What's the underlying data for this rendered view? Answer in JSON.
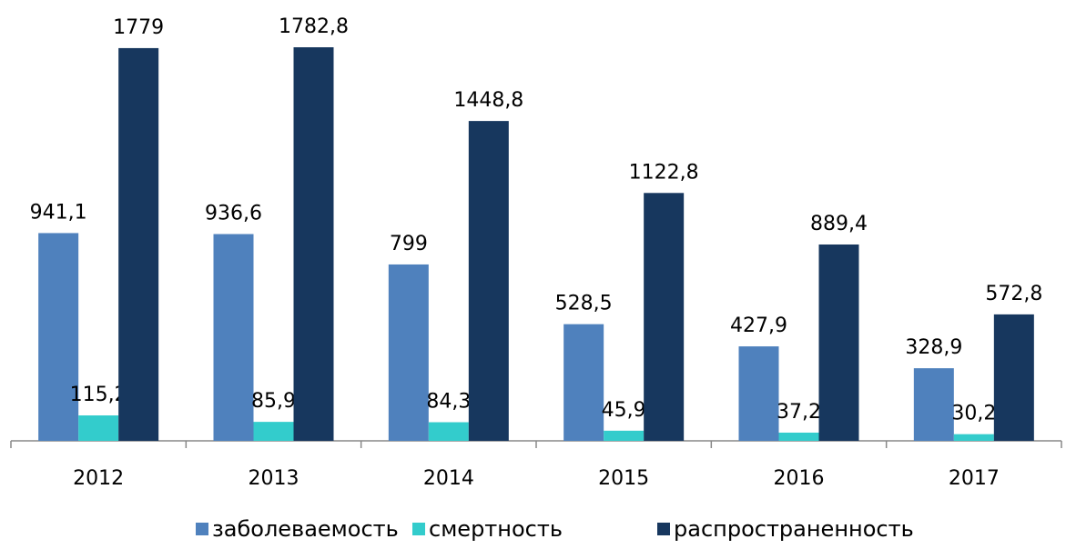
{
  "chart_data": {
    "type": "bar",
    "categories": [
      "2012",
      "2013",
      "2014",
      "2015",
      "2016",
      "2017"
    ],
    "series": [
      {
        "name": "заболеваемость",
        "color": "#4f81bd",
        "values": [
          941.1,
          936.6,
          799,
          528.5,
          427.9,
          328.9
        ],
        "value_labels": [
          "941,1",
          "936,6",
          "799",
          "528,5",
          "427,9",
          "328,9"
        ]
      },
      {
        "name": "смертность",
        "color": "#33cccc",
        "values": [
          115.2,
          85.9,
          84.3,
          45.9,
          37.2,
          30.2
        ],
        "value_labels": [
          "115,2",
          "85,9",
          "84,3",
          "45,9",
          "37,2",
          "30,2"
        ]
      },
      {
        "name": "распространенность",
        "color": "#17375e",
        "values": [
          1779,
          1782.8,
          1448.8,
          1122.8,
          889.4,
          572.8
        ],
        "value_labels": [
          "1779",
          "1782,8",
          "1448,8",
          "1122,8",
          "889,4",
          "572,8"
        ]
      }
    ],
    "legend": "bottom"
  }
}
